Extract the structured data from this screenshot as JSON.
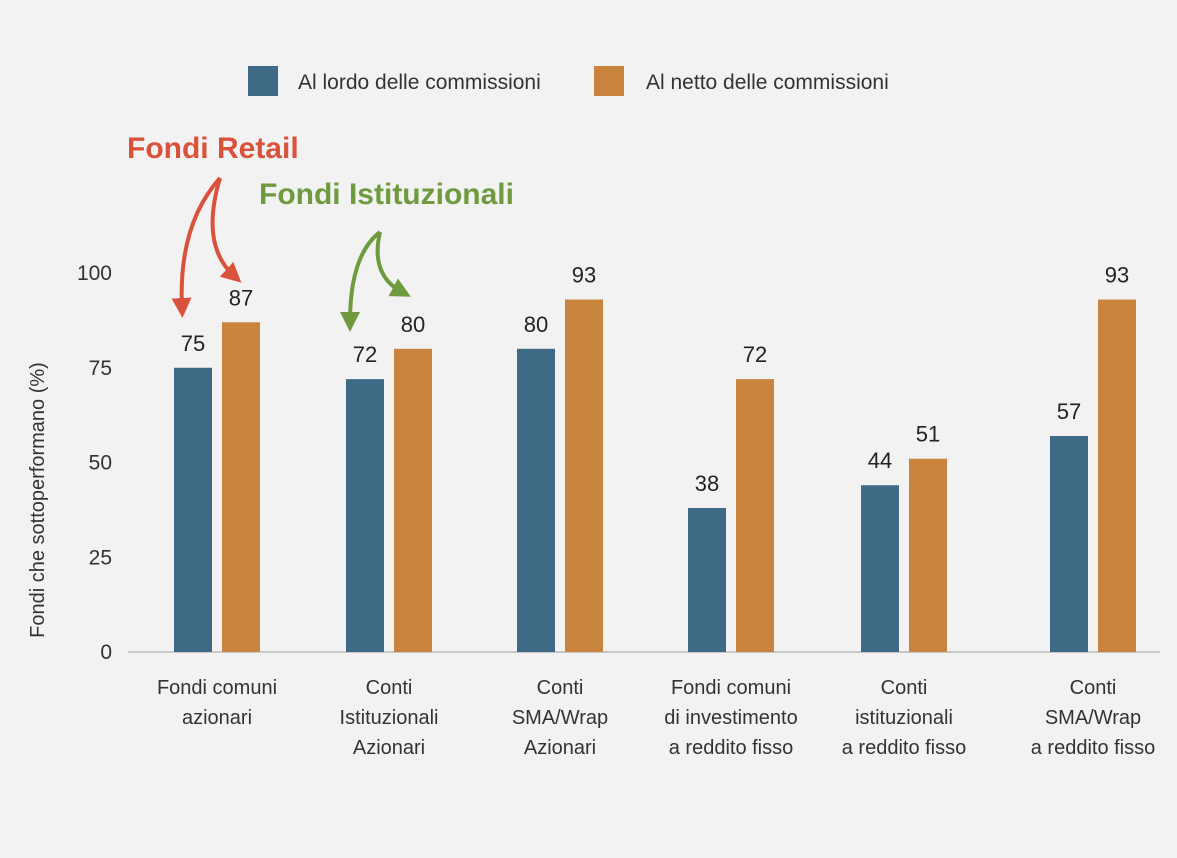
{
  "chart_data": {
    "type": "bar",
    "title": "",
    "xlabel": "",
    "ylabel": "Fondi che sottoperformano (%)",
    "ylim": [
      0,
      100
    ],
    "yticks": [
      0,
      25,
      50,
      75,
      100
    ],
    "grid": false,
    "legend_position": "top-center",
    "categories": [
      [
        "Fondi comuni",
        "azionari"
      ],
      [
        "Conti",
        "Istituzionali",
        "Azionari"
      ],
      [
        "Conti",
        "SMA/Wrap",
        "Azionari"
      ],
      [
        "Fondi comuni",
        "di investimento",
        "a reddito fisso"
      ],
      [
        "Conti",
        "istituzionali",
        "a reddito fisso"
      ],
      [
        "Conti",
        "SMA/Wrap",
        "a reddito fisso"
      ]
    ],
    "series": [
      {
        "name": "Al lordo delle commissioni",
        "color": "#3e6a85",
        "values": [
          75,
          72,
          80,
          38,
          44,
          57
        ]
      },
      {
        "name": "Al netto delle commissioni",
        "color": "#c9843e",
        "values": [
          87,
          80,
          93,
          72,
          51,
          93
        ]
      }
    ],
    "annotations": [
      {
        "text": "Fondi Retail",
        "color": "#d9533c",
        "category_index": 0
      },
      {
        "text": "Fondi Istituzionali",
        "color": "#6f9a3e",
        "category_index": 1
      }
    ]
  }
}
